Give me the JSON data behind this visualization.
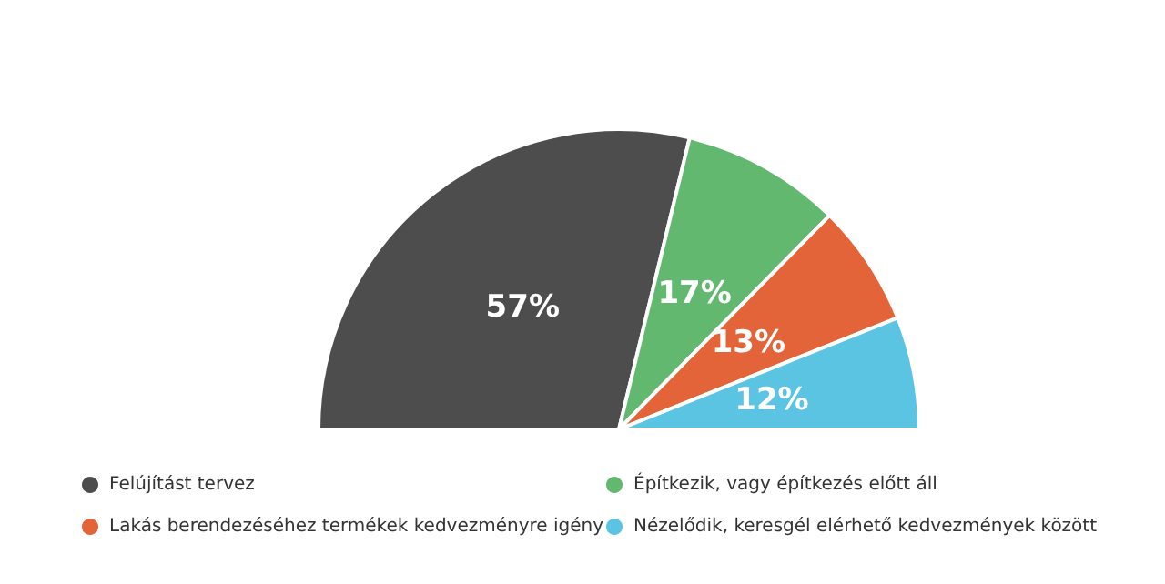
{
  "chart_data": {
    "type": "pie",
    "categories": [
      "Felújítást tervez",
      "Építkezik, vagy építkezés előtt áll",
      "Lakás berendezéséhez termékek kedvezményre igény",
      "Nézelődik, keresgél elérhető kedvezmények között"
    ],
    "values": [
      57,
      17,
      13,
      12
    ],
    "value_labels": [
      "57%",
      "17%",
      "13%",
      "12%"
    ],
    "colors": [
      "#4d4d4d",
      "#62b86f",
      "#e4643a",
      "#5bc4e3"
    ],
    "legend": "bottom"
  }
}
